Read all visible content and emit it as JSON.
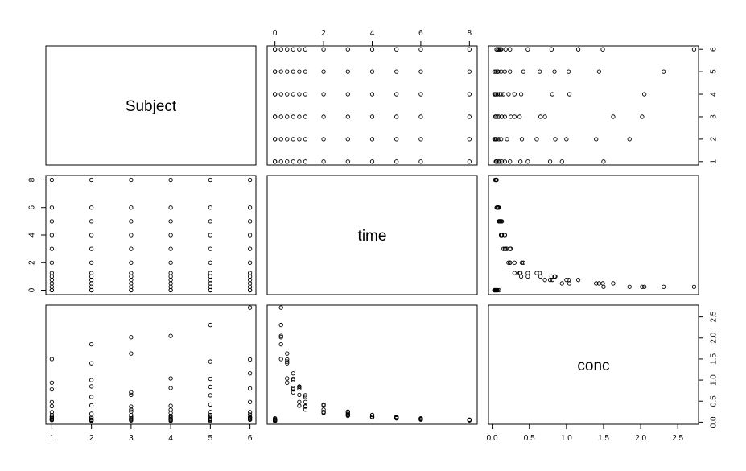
{
  "chart_data": {
    "type": "scatter",
    "subtype": "pairs",
    "variables": [
      "Subject",
      "time",
      "conc"
    ],
    "observations": {
      "Subject": [
        1,
        1,
        1,
        1,
        1,
        1,
        1,
        1,
        1,
        1,
        1,
        1,
        1,
        2,
        2,
        2,
        2,
        2,
        2,
        2,
        2,
        2,
        2,
        2,
        2,
        2,
        3,
        3,
        3,
        3,
        3,
        3,
        3,
        3,
        3,
        3,
        3,
        3,
        3,
        4,
        4,
        4,
        4,
        4,
        4,
        4,
        4,
        4,
        4,
        4,
        4,
        4,
        5,
        5,
        5,
        5,
        5,
        5,
        5,
        5,
        5,
        5,
        5,
        5,
        5,
        6,
        6,
        6,
        6,
        6,
        6,
        6,
        6,
        6,
        6,
        6,
        6,
        6
      ],
      "time": [
        0,
        0.25,
        0.5,
        0.75,
        1,
        1.25,
        2,
        3,
        4,
        5,
        6,
        8,
        0,
        0,
        0.25,
        0.5,
        0.75,
        1,
        1.25,
        2,
        3,
        4,
        5,
        6,
        8,
        0,
        0,
        0.25,
        0.5,
        0.75,
        1,
        1.25,
        2,
        3,
        4,
        5,
        6,
        8,
        0,
        0,
        0.25,
        0.5,
        0.75,
        1,
        1.25,
        2,
        3,
        4,
        5,
        6,
        8,
        0,
        0,
        0.25,
        0.5,
        0.75,
        1,
        1.25,
        2,
        3,
        4,
        5,
        6,
        8,
        0,
        0,
        0.25,
        0.5,
        0.75,
        1,
        1.25,
        2,
        3,
        4,
        5,
        6,
        8,
        0
      ],
      "conc": [
        0.06,
        1.5,
        0.94,
        0.78,
        0.48,
        0.38,
        0.24,
        0.17,
        0.13,
        0.1,
        0.08,
        0.05,
        0.05,
        0.05,
        1.85,
        1.4,
        1.0,
        0.85,
        0.6,
        0.4,
        0.2,
        0.12,
        0.09,
        0.06,
        0.04,
        0.03,
        0.07,
        2.02,
        1.63,
        0.71,
        0.65,
        0.37,
        0.3,
        0.25,
        0.17,
        0.13,
        0.09,
        0.05,
        0.04,
        0.04,
        2.05,
        1.04,
        0.81,
        0.39,
        0.3,
        0.22,
        0.15,
        0.12,
        0.1,
        0.07,
        0.05,
        0.03,
        0.03,
        2.31,
        1.44,
        1.03,
        0.84,
        0.64,
        0.42,
        0.24,
        0.17,
        0.12,
        0.08,
        0.05,
        0.07,
        0.09,
        2.72,
        1.49,
        1.16,
        0.8,
        0.48,
        0.24,
        0.18,
        0.12,
        0.11,
        0.08,
        0.06,
        0.06
      ]
    },
    "diagonal_labels": [
      "Subject",
      "time",
      "conc"
    ],
    "axes": {
      "Subject": {
        "range": [
          0.85,
          6.15
        ],
        "ticks": [
          1,
          2,
          3,
          4,
          5,
          6
        ],
        "tick_labels": [
          "1",
          "2",
          "3",
          "4",
          "5",
          "6"
        ]
      },
      "time": {
        "range": [
          -0.32,
          8.32
        ],
        "ticks": [
          0,
          2,
          4,
          6,
          8
        ],
        "tick_labels": [
          "0",
          "2",
          "4",
          "6",
          "8"
        ]
      },
      "conc": {
        "range": [
          -0.05,
          2.78
        ],
        "ticks": [
          0,
          0.5,
          1,
          1.5,
          2,
          2.5
        ],
        "tick_labels": [
          "0.0",
          "0.5",
          "1.0",
          "1.5",
          "2.0",
          "2.5"
        ]
      }
    },
    "axis_placement": {
      "bottom": [
        "Subject",
        null,
        "conc"
      ],
      "top": [
        null,
        "time",
        null
      ],
      "left": [
        null,
        "time",
        null
      ],
      "right": [
        "Subject",
        null,
        "conc"
      ]
    },
    "title": "",
    "grid": false,
    "legend": "none"
  }
}
